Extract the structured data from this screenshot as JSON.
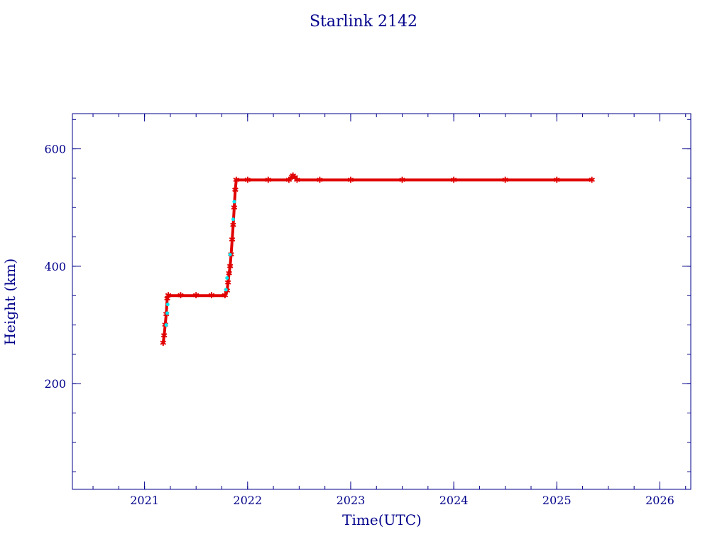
{
  "chart_data": {
    "type": "scatter",
    "title": "Starlink 2142",
    "xlabel": "Time(UTC)",
    "ylabel": "Height (km)",
    "xlim": [
      2020.3,
      2026.3
    ],
    "ylim": [
      20,
      660
    ],
    "x_major_ticks": [
      2021,
      2022,
      2023,
      2024,
      2025,
      2026
    ],
    "x_minor_step": 0.25,
    "y_major_ticks": [
      200,
      400,
      600
    ],
    "y_minor_step": 50,
    "grid": false,
    "colors": {
      "axis": "#00008b",
      "text": "#00008b",
      "primary_points": "#e00000",
      "secondary_points": "#00e5ee"
    },
    "series": [
      {
        "marker": "star",
        "color": "#e00000",
        "points": [
          [
            2021.18,
            269
          ],
          [
            2021.19,
            282
          ],
          [
            2021.2,
            300
          ],
          [
            2021.21,
            318
          ],
          [
            2021.22,
            345
          ],
          [
            2021.23,
            350
          ],
          [
            2021.35,
            350
          ],
          [
            2021.5,
            350
          ],
          [
            2021.65,
            350
          ],
          [
            2021.78,
            350
          ],
          [
            2021.8,
            358
          ],
          [
            2021.81,
            372
          ],
          [
            2021.82,
            388
          ],
          [
            2021.83,
            400
          ],
          [
            2021.84,
            420
          ],
          [
            2021.85,
            445
          ],
          [
            2021.86,
            470
          ],
          [
            2021.87,
            500
          ],
          [
            2021.88,
            530
          ],
          [
            2021.89,
            547
          ],
          [
            2022.0,
            547
          ],
          [
            2022.2,
            547
          ],
          [
            2022.4,
            547
          ],
          [
            2022.43,
            552
          ],
          [
            2022.44,
            554
          ],
          [
            2022.46,
            551
          ],
          [
            2022.48,
            547
          ],
          [
            2022.7,
            547
          ],
          [
            2023.0,
            547
          ],
          [
            2023.5,
            547
          ],
          [
            2024.0,
            547
          ],
          [
            2024.5,
            547
          ],
          [
            2025.0,
            547
          ],
          [
            2025.34,
            547
          ]
        ]
      },
      {
        "marker": "dot",
        "color": "#00e5ee",
        "points": [
          [
            2021.21,
            300
          ],
          [
            2021.22,
            320
          ],
          [
            2021.225,
            335
          ],
          [
            2021.79,
            360
          ],
          [
            2021.8,
            380
          ],
          [
            2021.83,
            420
          ],
          [
            2021.86,
            480
          ],
          [
            2021.87,
            510
          ]
        ]
      }
    ]
  }
}
